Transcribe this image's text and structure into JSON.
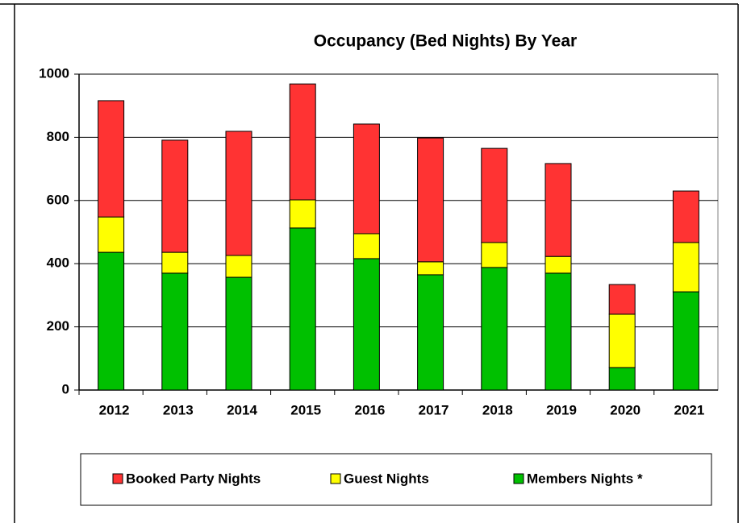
{
  "chart_data": {
    "type": "stacked_bar",
    "title": "Occupancy (Bed Nights) By Year",
    "categories": [
      "2012",
      "2013",
      "2014",
      "2015",
      "2016",
      "2017",
      "2018",
      "2019",
      "2020",
      "2021"
    ],
    "series": [
      {
        "name": "Members Nights *",
        "color": "#00c000",
        "values": [
          436,
          370,
          357,
          513,
          416,
          365,
          388,
          370,
          71,
          311
        ]
      },
      {
        "name": "Guest Nights",
        "color": "#ffff00",
        "values": [
          112,
          66,
          69,
          89,
          79,
          41,
          79,
          53,
          169,
          156
        ]
      },
      {
        "name": "Booked Party Nights",
        "color": "#ff3333",
        "values": [
          368,
          355,
          393,
          367,
          347,
          392,
          298,
          294,
          94,
          163
        ]
      }
    ],
    "ylim": [
      0,
      1000
    ],
    "yticks": [
      0,
      200,
      400,
      600,
      800,
      1000
    ],
    "grid": true,
    "legend": "bottom"
  }
}
